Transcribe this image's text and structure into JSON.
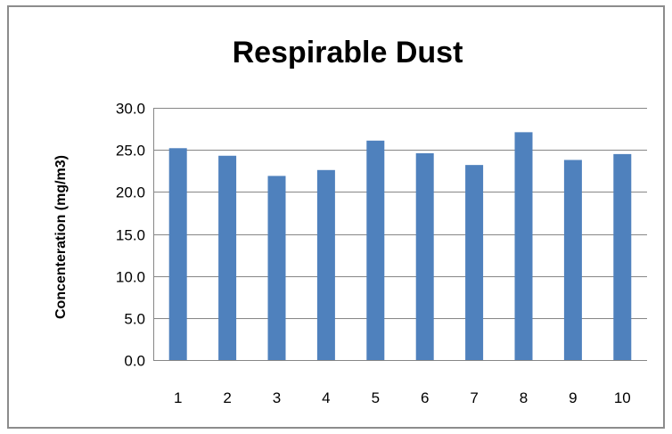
{
  "chart_data": {
    "type": "bar",
    "title": "Respirable Dust",
    "xlabel": "",
    "ylabel": "Concenteration (mg/m3)",
    "categories": [
      "1",
      "2",
      "3",
      "4",
      "5",
      "6",
      "7",
      "8",
      "9",
      "10"
    ],
    "values": [
      25.2,
      24.3,
      21.9,
      22.6,
      26.1,
      24.6,
      23.2,
      27.1,
      23.8,
      24.5
    ],
    "ylim": [
      0,
      30
    ],
    "yticks": [
      "0.0",
      "5.0",
      "10.0",
      "15.0",
      "20.0",
      "25.0",
      "30.0"
    ],
    "grid": true,
    "legend": "none",
    "bar_color": "#4f81bd",
    "gridline_color": "#868686"
  }
}
